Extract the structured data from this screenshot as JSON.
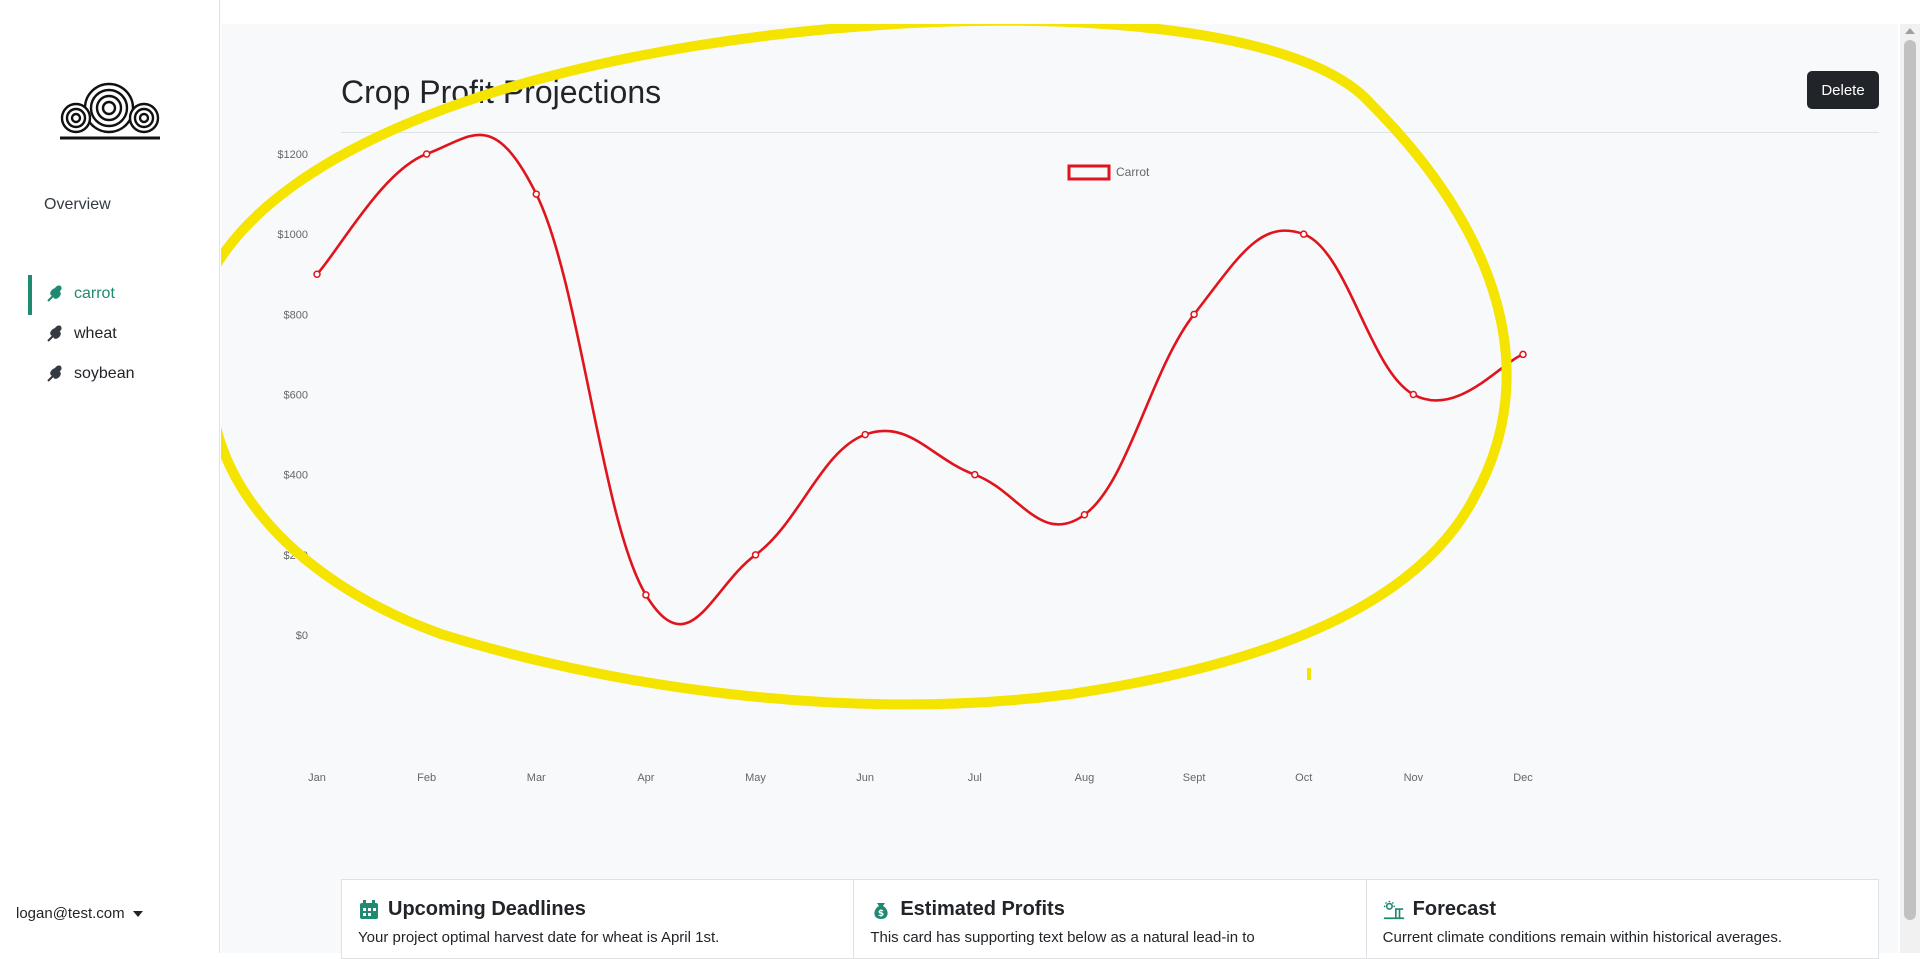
{
  "sidebar": {
    "overview_label": "Overview",
    "crops": [
      {
        "label": "carrot",
        "active": true
      },
      {
        "label": "wheat",
        "active": false
      },
      {
        "label": "soybean",
        "active": false
      }
    ],
    "user_email": "logan@test.com"
  },
  "header": {
    "title": "Crop Profit Projections",
    "delete_label": "Delete"
  },
  "chart_data": {
    "type": "line",
    "categories": [
      "Jan",
      "Feb",
      "Mar",
      "Apr",
      "May",
      "Jun",
      "Jul",
      "Aug",
      "Sept",
      "Oct",
      "Nov",
      "Dec"
    ],
    "series": [
      {
        "name": "Carrot",
        "values": [
          900,
          1200,
          1100,
          100,
          200,
          500,
          400,
          300,
          800,
          1000,
          600,
          700
        ],
        "color": "#e0141c"
      }
    ],
    "yticks": [
      "$0",
      "$200",
      "$400",
      "$600",
      "$800",
      "$1000",
      "$1200"
    ],
    "ylim": [
      0,
      1200
    ],
    "legend": "top-center",
    "annotation_color": "#f5e400"
  },
  "cards": [
    {
      "title": "Upcoming Deadlines",
      "icon": "calendar-icon",
      "text": "Your project optimal harvest date for wheat is April 1st."
    },
    {
      "title": "Estimated Profits",
      "icon": "money-bag-icon",
      "text": "This card has supporting text below as a natural lead-in to"
    },
    {
      "title": "Forecast",
      "icon": "weather-icon",
      "text": "Current climate conditions remain within historical averages."
    }
  ],
  "colors": {
    "accent": "#1f8a70",
    "series": "#e0141c",
    "annotation": "#f5e400"
  }
}
